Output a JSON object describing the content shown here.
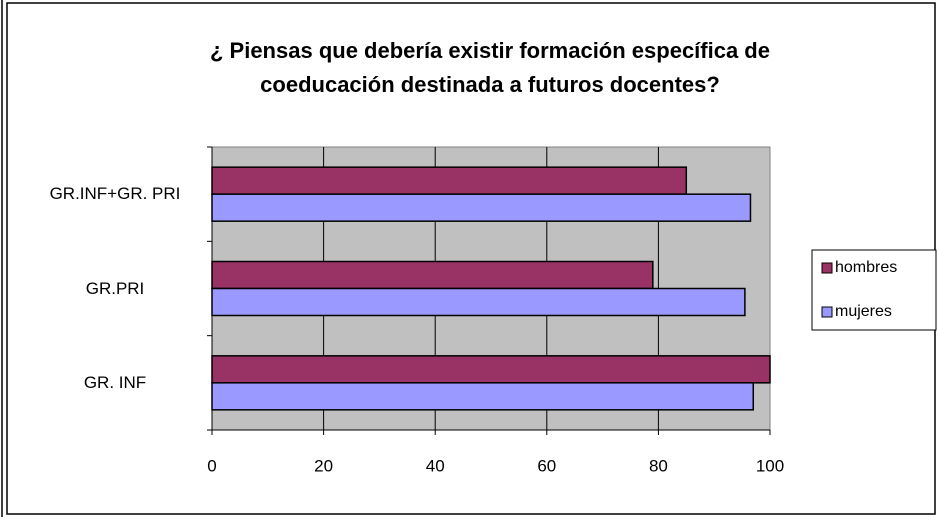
{
  "chart_data": {
    "type": "bar",
    "orientation": "horizontal",
    "title": "¿ Piensas que debería existir formación específica de coeducación destinada a futuros docentes?",
    "categories": [
      "GR. INF",
      "GR.PRI",
      "GR.INF+GR. PRI"
    ],
    "series": [
      {
        "name": "hombres",
        "color": "#993366",
        "values": [
          100,
          79,
          85
        ]
      },
      {
        "name": "mujeres",
        "color": "#9999ff",
        "values": [
          97,
          95.5,
          96.5
        ]
      }
    ],
    "xlim": [
      0,
      100
    ],
    "xticks": [
      0,
      20,
      40,
      60,
      80,
      100
    ],
    "grid": true,
    "legend": "right"
  }
}
